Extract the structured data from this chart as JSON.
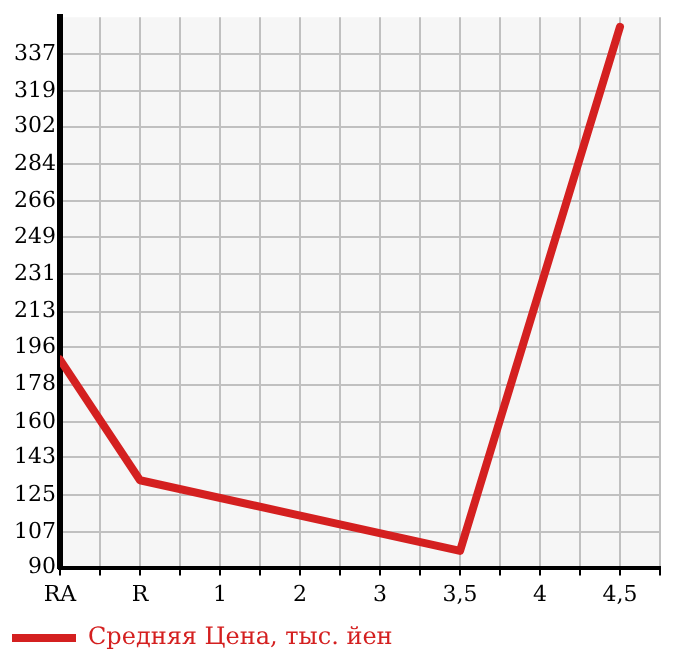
{
  "chart_data": {
    "type": "line",
    "categories": [
      "RA",
      "R",
      "1",
      "2",
      "3",
      "3,5",
      "4",
      "4,5"
    ],
    "series": [
      {
        "name": "Средняя Цена, тыс. йен",
        "color": "#d42020",
        "values": [
          190,
          132,
          null,
          null,
          null,
          98,
          null,
          350
        ]
      }
    ],
    "ylim": [
      90,
      354.6
    ],
    "yticks": [
      90,
      107,
      125,
      143,
      160,
      178,
      196,
      213,
      231,
      249,
      266,
      284,
      302,
      319,
      337
    ],
    "grid": true,
    "legend": "bottom left",
    "marker": "none",
    "line_style": "solid"
  }
}
